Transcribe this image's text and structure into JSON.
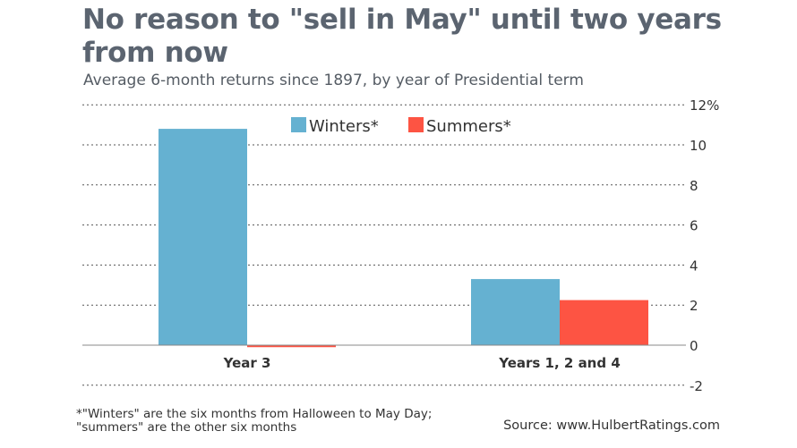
{
  "header": {
    "title": "No reason to \"sell in May\" until two years from now",
    "subtitle": "Average 6-month returns since 1897, by year of Presidential term"
  },
  "footnote": {
    "line1": "*\"Winters\" are the six months from Halloween to May Day;",
    "line2": "\"summers\" are the other six months"
  },
  "source": "Source: www.HulbertRatings.com",
  "colors": {
    "winters": "#65b1d1",
    "summers": "#fd5443",
    "grid": "#555555",
    "text": "#333333"
  },
  "chart_data": {
    "type": "bar",
    "categories": [
      "Year 3",
      "Years 1, 2 and 4"
    ],
    "series": [
      {
        "name": "Winters*",
        "values": [
          10.8,
          3.3
        ]
      },
      {
        "name": "Summers*",
        "values": [
          -0.1,
          2.25
        ]
      }
    ],
    "y_ticks": [
      -2,
      0,
      2,
      4,
      6,
      8,
      10,
      12
    ],
    "y_tick_labels": [
      "-2",
      "0",
      "2",
      "4",
      "6",
      "8",
      "10",
      "12%"
    ],
    "ylim": [
      -2,
      12
    ],
    "y_axis_side": "right",
    "grid": true,
    "legend_position": "top-center"
  }
}
